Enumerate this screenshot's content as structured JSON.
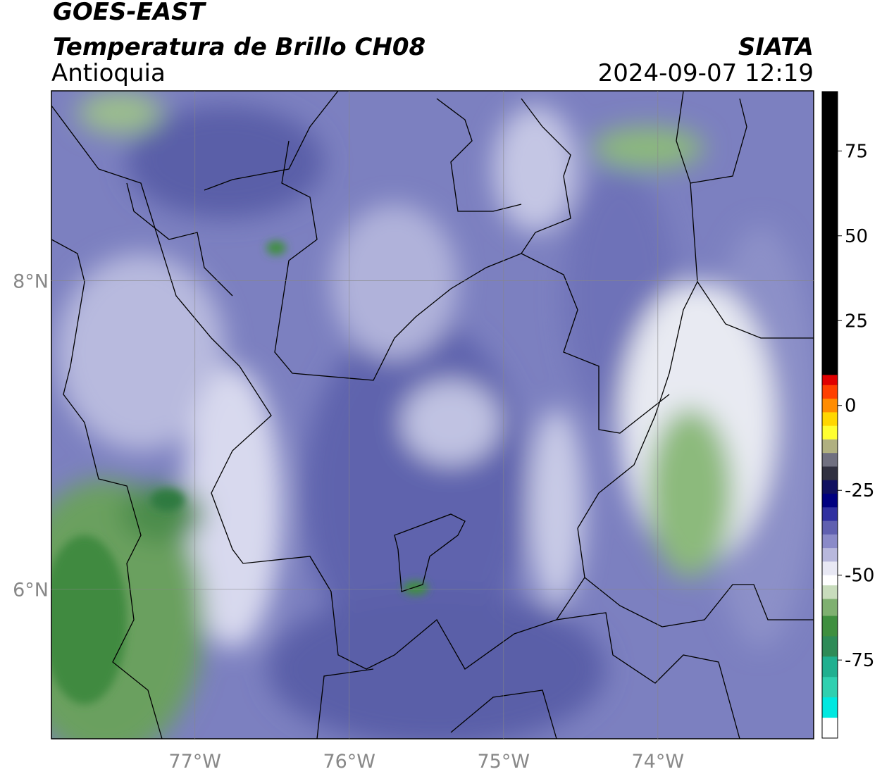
{
  "header": {
    "title": "GOES-EAST",
    "subtitle": "Temperatura de Brillo CH08",
    "region": "Antioquia",
    "source": "SIATA",
    "timestamp": "2024-09-07 12:19"
  },
  "map": {
    "lon_range": [
      -77.93,
      -72.99
    ],
    "lat_range": [
      5.03,
      9.23
    ],
    "lon_ticks": [
      {
        "value": -77,
        "label": "77°W"
      },
      {
        "value": -76,
        "label": "76°W"
      },
      {
        "value": -75,
        "label": "75°W"
      },
      {
        "value": -74,
        "label": "74°W"
      }
    ],
    "lat_ticks": [
      {
        "value": 8,
        "label": "8°N"
      },
      {
        "value": 6,
        "label": "6°N"
      }
    ]
  },
  "colorbar": {
    "range": [
      -98,
      92.5
    ],
    "ticks": [
      75,
      50,
      25,
      0,
      -25,
      -50,
      -75
    ],
    "bands": [
      {
        "from": 9,
        "to": 92.5,
        "color": "#000000"
      },
      {
        "from": 6,
        "to": 9,
        "color": "#e00000"
      },
      {
        "from": 2,
        "to": 6,
        "color": "#ff4000"
      },
      {
        "from": -2,
        "to": 2,
        "color": "#ff8c00"
      },
      {
        "from": -6,
        "to": -2,
        "color": "#ffd700"
      },
      {
        "from": -10,
        "to": -6,
        "color": "#ffff30"
      },
      {
        "from": -14,
        "to": -10,
        "color": "#b0b080"
      },
      {
        "from": -18,
        "to": -14,
        "color": "#707080"
      },
      {
        "from": -22,
        "to": -18,
        "color": "#303040"
      },
      {
        "from": -26,
        "to": -22,
        "color": "#101060"
      },
      {
        "from": -30,
        "to": -26,
        "color": "#000080"
      },
      {
        "from": -34,
        "to": -30,
        "color": "#3030a0"
      },
      {
        "from": -38,
        "to": -34,
        "color": "#6060b0"
      },
      {
        "from": -42,
        "to": -38,
        "color": "#8a8ac8"
      },
      {
        "from": -46,
        "to": -42,
        "color": "#b8b8dc"
      },
      {
        "from": -50,
        "to": -46,
        "color": "#e8e8f4"
      },
      {
        "from": -53,
        "to": -50,
        "color": "#ffffff"
      },
      {
        "from": -57,
        "to": -53,
        "color": "#c8dcbc"
      },
      {
        "from": -62,
        "to": -57,
        "color": "#7fb070"
      },
      {
        "from": -68,
        "to": -62,
        "color": "#3f8f3f"
      },
      {
        "from": -74,
        "to": -68,
        "color": "#2e8b57"
      },
      {
        "from": -80,
        "to": -74,
        "color": "#20b090"
      },
      {
        "from": -86,
        "to": -80,
        "color": "#30d0b0"
      },
      {
        "from": -92,
        "to": -86,
        "color": "#00e8e0"
      },
      {
        "from": -98,
        "to": -92,
        "color": "#ffffff"
      }
    ]
  }
}
